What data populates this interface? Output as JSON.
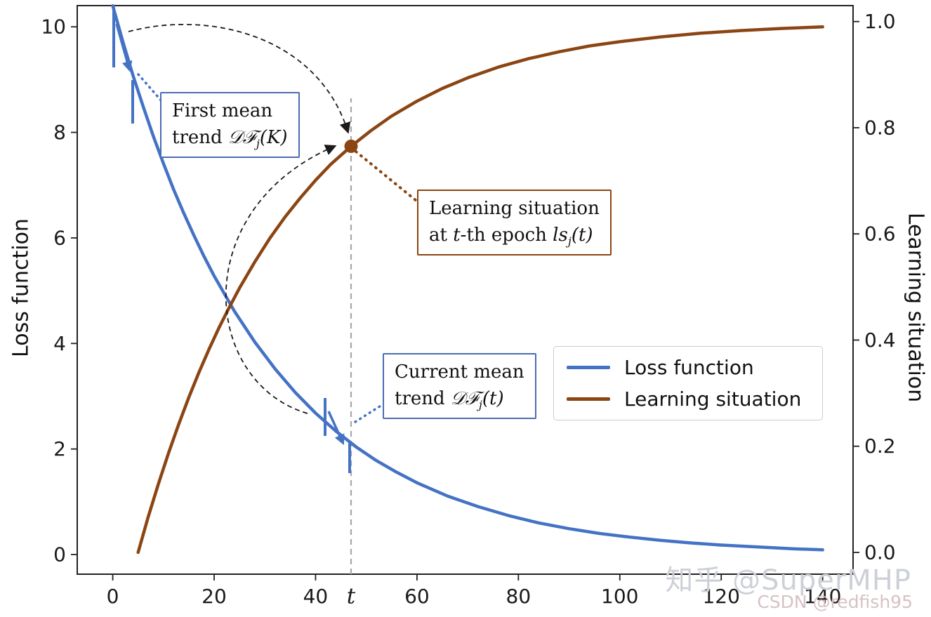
{
  "axes": {
    "ylabel_left": "Loss function",
    "ylabel_right": "Learning situation"
  },
  "annotations": {
    "first_mean": {
      "line1": "First mean",
      "line2_prefix": "trend ",
      "math": "𝒟ℱ",
      "sub": "j",
      "args": "(K)"
    },
    "learning_situation": {
      "line1": "Learning situation",
      "line2_prefix": "at ",
      "t": "t",
      "mid": "-th epoch ",
      "math": "ls",
      "sub": "j",
      "args": "(t)"
    },
    "current_mean": {
      "line1": "Current mean",
      "line2_prefix": "trend ",
      "math": "𝒟ℱ",
      "sub": "j",
      "args": "(t)"
    }
  },
  "legend": {
    "items": [
      {
        "label": "Loss function",
        "color": "#4472c4"
      },
      {
        "label": "Learning situation",
        "color": "#8b4513"
      }
    ]
  },
  "watermarks": {
    "primary": "知乎 @SuperMHP",
    "secondary": "CSDN @redfish95"
  },
  "chart_data": {
    "type": "line",
    "title": "",
    "xlabel": "",
    "ylabel_left": "Loss function",
    "ylabel_right": "Learning situation",
    "grid": false,
    "legend_position": "center right",
    "xlim": [
      -7,
      146
    ],
    "ylim_left": [
      -0.372,
      10.402
    ],
    "ylim_right": [
      -0.041,
      1.03
    ],
    "x_ticks": [
      {
        "v": 0,
        "label": "0"
      },
      {
        "v": 20,
        "label": "20"
      },
      {
        "v": 40,
        "label": "40"
      },
      {
        "v": 60,
        "label": "60"
      },
      {
        "v": 80,
        "label": "80"
      },
      {
        "v": 100,
        "label": "100"
      },
      {
        "v": 120,
        "label": "120"
      },
      {
        "v": 140,
        "label": "140"
      }
    ],
    "t_tick": {
      "v": 47,
      "label": "t"
    },
    "y_ticks_left": [
      {
        "v": 0,
        "label": "0"
      },
      {
        "v": 2,
        "label": "2"
      },
      {
        "v": 4,
        "label": "4"
      },
      {
        "v": 6,
        "label": "6"
      },
      {
        "v": 8,
        "label": "8"
      },
      {
        "v": 10,
        "label": "10"
      }
    ],
    "y_ticks_right": [
      {
        "v": 0.0,
        "label": "0.0"
      },
      {
        "v": 0.2,
        "label": "0.2"
      },
      {
        "v": 0.4,
        "label": "0.4"
      },
      {
        "v": 0.6,
        "label": "0.6"
      },
      {
        "v": 0.8,
        "label": "0.8"
      },
      {
        "v": 1.0,
        "label": "1.0"
      }
    ],
    "series": [
      {
        "name": "Loss function",
        "axis": "left",
        "color": "#4472c4",
        "x": [
          0,
          2,
          4,
          6,
          8,
          10,
          12,
          14,
          16,
          18,
          20,
          24,
          28,
          32,
          36,
          40,
          44,
          48,
          52,
          56,
          60,
          66,
          72,
          78,
          84,
          90,
          96,
          102,
          108,
          114,
          120,
          128,
          134,
          140
        ],
        "y": [
          10.4,
          9.72,
          9.08,
          8.49,
          7.93,
          7.41,
          6.92,
          6.47,
          6.05,
          5.65,
          5.28,
          4.61,
          4.03,
          3.52,
          3.07,
          2.68,
          2.34,
          2.04,
          1.78,
          1.56,
          1.36,
          1.11,
          0.91,
          0.74,
          0.6,
          0.49,
          0.4,
          0.33,
          0.27,
          0.22,
          0.18,
          0.14,
          0.11,
          0.09
        ]
      },
      {
        "name": "Learning situation",
        "axis": "right",
        "color": "#8b4513",
        "x": [
          5,
          7,
          9,
          11,
          13,
          15,
          17,
          19,
          21,
          23,
          25,
          28,
          31,
          34,
          37,
          40,
          43,
          47,
          51,
          55,
          60,
          65,
          70,
          76,
          82,
          88,
          94,
          100,
          108,
          116,
          124,
          132,
          140
        ],
        "y": [
          0,
          0.067,
          0.129,
          0.187,
          0.241,
          0.292,
          0.339,
          0.383,
          0.424,
          0.462,
          0.498,
          0.547,
          0.592,
          0.632,
          0.668,
          0.701,
          0.731,
          0.765,
          0.795,
          0.822,
          0.85,
          0.874,
          0.894,
          0.914,
          0.93,
          0.943,
          0.954,
          0.962,
          0.971,
          0.978,
          0.983,
          0.987,
          0.99
        ]
      }
    ],
    "marked_point": {
      "x": 47,
      "y": 0.765,
      "axis": "right",
      "color": "#8b4513"
    },
    "t_line": {
      "x": 47
    }
  }
}
